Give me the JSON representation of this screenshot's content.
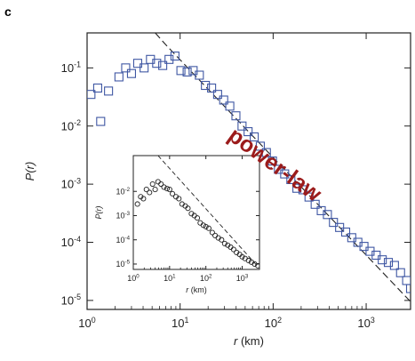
{
  "panel_label": "c",
  "annotation": "power-law",
  "colors": {
    "main_marker": "#3f57a3",
    "inset_marker": "#222222",
    "fit_line": "#222222",
    "annotation": "#9b1b1b"
  },
  "chart_data": [
    {
      "type": "scatter",
      "title": "",
      "xlabel": "r (km)",
      "ylabel": "P(r)",
      "xscale": "log",
      "yscale": "log",
      "xlim": [
        1,
        3000
      ],
      "ylim": [
        7e-06,
        0.4
      ],
      "xticks": [
        1,
        10,
        100,
        1000
      ],
      "xtick_labels": [
        "10",
        "10",
        "10",
        "10"
      ],
      "xtick_exponents": [
        "0",
        "1",
        "2",
        "3"
      ],
      "yticks": [
        1e-05,
        0.0001,
        0.001,
        0.01,
        0.1
      ],
      "ytick_labels": [
        "10",
        "10",
        "10",
        "10",
        "10"
      ],
      "ytick_exponents": [
        "-5",
        "-4",
        "-3",
        "-2",
        "-1"
      ],
      "marker": "open-square",
      "series": [
        {
          "points": [
            [
              1.1,
              0.035
            ],
            [
              1.3,
              0.045
            ],
            [
              1.4,
              0.012
            ],
            [
              1.7,
              0.04
            ],
            [
              2.2,
              0.07
            ],
            [
              2.6,
              0.1
            ],
            [
              3.0,
              0.08
            ],
            [
              3.5,
              0.12
            ],
            [
              4.1,
              0.1
            ],
            [
              4.8,
              0.14
            ],
            [
              5.6,
              0.12
            ],
            [
              6.5,
              0.11
            ],
            [
              7.6,
              0.14
            ],
            [
              8.8,
              0.16
            ],
            [
              10.2,
              0.09
            ],
            [
              11.9,
              0.085
            ],
            [
              13.8,
              0.09
            ],
            [
              16.1,
              0.075
            ],
            [
              18.7,
              0.05
            ],
            [
              21.8,
              0.045
            ],
            [
              25.3,
              0.035
            ],
            [
              29.4,
              0.028
            ],
            [
              34.2,
              0.022
            ],
            [
              39.8,
              0.015
            ],
            [
              46.3,
              0.01
            ],
            [
              53.8,
              0.008
            ],
            [
              62.6,
              0.0065
            ],
            [
              72.8,
              0.0045
            ],
            [
              84.6,
              0.0035
            ],
            [
              98.4,
              0.0025
            ],
            [
              114,
              0.0018
            ],
            [
              133,
              0.0015
            ],
            [
              155,
              0.0012
            ],
            [
              180,
              0.00085
            ],
            [
              209,
              0.0008
            ],
            [
              243,
              0.0006
            ],
            [
              283,
              0.00045
            ],
            [
              329,
              0.00035
            ],
            [
              383,
              0.0003
            ],
            [
              445,
              0.00022
            ],
            [
              518,
              0.00018
            ],
            [
              602,
              0.00015
            ],
            [
              700,
              0.00012
            ],
            [
              814,
              0.0001
            ],
            [
              947,
              8.5e-05
            ],
            [
              1101,
              7e-05
            ],
            [
              1280,
              6e-05
            ],
            [
              1489,
              5e-05
            ],
            [
              1732,
              4.5e-05
            ],
            [
              2014,
              4e-05
            ],
            [
              2342,
              3e-05
            ],
            [
              2723,
              2.2e-05
            ],
            [
              3000,
              1.6e-05
            ]
          ]
        }
      ],
      "fit_line": {
        "style": "dashed",
        "points": [
          [
            5.4,
            0.4
          ],
          [
            7.0,
            0.25
          ],
          [
            3000,
            9.5e-06
          ]
        ]
      }
    },
    {
      "type": "scatter",
      "title": "",
      "xlabel": "r (km)",
      "ylabel": "P(r)",
      "xscale": "log",
      "yscale": "log",
      "xlim": [
        1,
        3000
      ],
      "ylim": [
        6e-06,
        0.3
      ],
      "xticks": [
        1,
        10,
        100,
        1000
      ],
      "xtick_labels": [
        "10",
        "10",
        "10",
        "10"
      ],
      "xtick_exponents": [
        "0",
        "1",
        "2",
        "3"
      ],
      "yticks": [
        1e-05,
        0.0001,
        0.001,
        0.01
      ],
      "ytick_labels": [
        "10",
        "10",
        "10",
        "10"
      ],
      "ytick_exponents": [
        "-5",
        "-4",
        "-3",
        "-2"
      ],
      "marker": "open-circle",
      "series": [
        {
          "points": [
            [
              1.3,
              0.003
            ],
            [
              1.6,
              0.006
            ],
            [
              1.9,
              0.005
            ],
            [
              2.3,
              0.012
            ],
            [
              2.8,
              0.009
            ],
            [
              3.4,
              0.02
            ],
            [
              4.0,
              0.012
            ],
            [
              4.8,
              0.025
            ],
            [
              5.8,
              0.02
            ],
            [
              7,
              0.015
            ],
            [
              8.5,
              0.013
            ],
            [
              10,
              0.012
            ],
            [
              12,
              0.008
            ],
            [
              15,
              0.006
            ],
            [
              18,
              0.005
            ],
            [
              22,
              0.003
            ],
            [
              27,
              0.0025
            ],
            [
              32,
              0.002
            ],
            [
              40,
              0.0012
            ],
            [
              48,
              0.001
            ],
            [
              58,
              0.0008
            ],
            [
              70,
              0.0005
            ],
            [
              85,
              0.0004
            ],
            [
              100,
              0.00035
            ],
            [
              120,
              0.0003
            ],
            [
              150,
              0.0002
            ],
            [
              180,
              0.00015
            ],
            [
              220,
              0.00012
            ],
            [
              270,
              0.0001
            ],
            [
              330,
              7e-05
            ],
            [
              400,
              6e-05
            ],
            [
              480,
              5e-05
            ],
            [
              580,
              4e-05
            ],
            [
              700,
              3e-05
            ],
            [
              850,
              2.5e-05
            ],
            [
              1000,
              2e-05
            ],
            [
              1200,
              1.7e-05
            ],
            [
              1500,
              1.4e-05
            ],
            [
              1800,
              1.2e-05
            ],
            [
              2200,
              1e-05
            ],
            [
              2700,
              8.5e-06
            ]
          ]
        }
      ],
      "fit_line": {
        "style": "dashed",
        "points": [
          [
            4.8,
            0.3
          ],
          [
            2700,
            8e-06
          ]
        ]
      }
    }
  ]
}
